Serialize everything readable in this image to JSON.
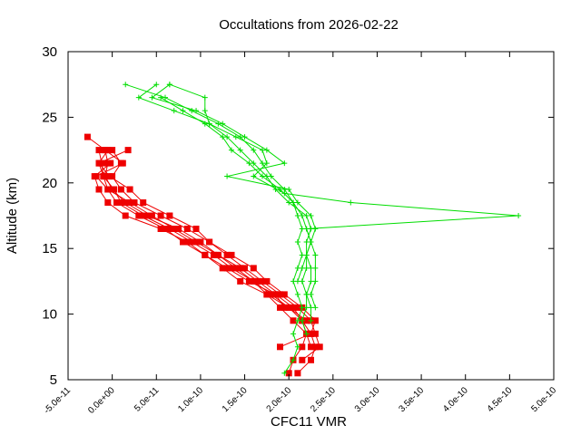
{
  "chart_data": {
    "type": "line",
    "title": "Occultations from 2026-02-22",
    "xlabel": "CFC11 VMR",
    "ylabel": "Altitude (km)",
    "xlim": [
      -5e-11,
      5e-10
    ],
    "ylim": [
      5,
      30
    ],
    "x_ticks": [
      {
        "value": -5e-11,
        "label": "-5.0e-11"
      },
      {
        "value": 0,
        "label": "0.0e+00"
      },
      {
        "value": 5e-11,
        "label": "5.0e-11"
      },
      {
        "value": 1e-10,
        "label": "1.0e-10"
      },
      {
        "value": 1.5e-10,
        "label": "1.5e-10"
      },
      {
        "value": 2e-10,
        "label": "2.0e-10"
      },
      {
        "value": 2.5e-10,
        "label": "2.5e-10"
      },
      {
        "value": 3e-10,
        "label": "3.0e-10"
      },
      {
        "value": 3.5e-10,
        "label": "3.5e-10"
      },
      {
        "value": 4e-10,
        "label": "4.0e-10"
      },
      {
        "value": 4.5e-10,
        "label": "4.5e-10"
      },
      {
        "value": 5e-10,
        "label": "5.0e-10"
      }
    ],
    "y_ticks": [
      {
        "value": 5,
        "label": "5"
      },
      {
        "value": 10,
        "label": "10"
      },
      {
        "value": 15,
        "label": "15"
      },
      {
        "value": 20,
        "label": "20"
      },
      {
        "value": 25,
        "label": "25"
      },
      {
        "value": 30,
        "label": "30"
      }
    ],
    "colors": {
      "red": "#ee0000",
      "green": "#00dd00",
      "axis": "#000000",
      "background": "#ffffff"
    },
    "series": [
      {
        "name": "red-1",
        "color": "#ee0000",
        "marker": "square",
        "points": [
          [
            2.1e-10,
            5.5
          ],
          [
            2.25e-10,
            6.5
          ],
          [
            2.3e-10,
            7.5
          ],
          [
            2.25e-10,
            8.5
          ],
          [
            2.15e-10,
            9.5
          ],
          [
            2e-10,
            10.5
          ],
          [
            1.8e-10,
            11.5
          ],
          [
            1.6e-10,
            12.5
          ],
          [
            1.4e-10,
            13.5
          ],
          [
            1.2e-10,
            14.5
          ],
          [
            1e-10,
            15.5
          ],
          [
            7.5e-11,
            16.5
          ],
          [
            4e-11,
            17.5
          ],
          [
            1.5e-11,
            18.5
          ],
          [
            0,
            19.5
          ],
          [
            -8e-12,
            20.5
          ],
          [
            -5e-12,
            21.5
          ],
          [
            -8e-12,
            22.5
          ],
          [
            -2.8e-11,
            23.5
          ]
        ]
      },
      {
        "name": "red-2",
        "color": "#ee0000",
        "marker": "square",
        "points": [
          [
            2.15e-10,
            6.5
          ],
          [
            2.35e-10,
            7.5
          ],
          [
            2.3e-10,
            8.5
          ],
          [
            2.25e-10,
            9.5
          ],
          [
            2.1e-10,
            10.5
          ],
          [
            1.9e-10,
            11.5
          ],
          [
            1.7e-10,
            12.5
          ],
          [
            1.5e-10,
            13.5
          ],
          [
            1.3e-10,
            14.5
          ],
          [
            1.1e-10,
            15.5
          ],
          [
            8.5e-11,
            16.5
          ],
          [
            5.5e-11,
            17.5
          ],
          [
            2.5e-11,
            18.5
          ],
          [
            1e-11,
            19.5
          ],
          [
            0,
            20.5
          ],
          [
            1e-11,
            21.5
          ],
          [
            0,
            22.5
          ]
        ]
      },
      {
        "name": "red-3",
        "color": "#ee0000",
        "marker": "square",
        "points": [
          [
            2e-10,
            5.5
          ],
          [
            2.05e-10,
            6.5
          ],
          [
            2.15e-10,
            7.5
          ],
          [
            2.2e-10,
            8.5
          ],
          [
            2.05e-10,
            9.5
          ],
          [
            1.9e-10,
            10.5
          ],
          [
            1.75e-10,
            11.5
          ],
          [
            1.45e-10,
            12.5
          ],
          [
            1.25e-10,
            13.5
          ],
          [
            1.05e-10,
            14.5
          ],
          [
            8e-11,
            15.5
          ],
          [
            6e-11,
            16.5
          ],
          [
            3e-11,
            17.5
          ],
          [
            5e-12,
            18.5
          ],
          [
            -5e-12,
            19.5
          ],
          [
            -1e-11,
            20.5
          ],
          [
            -1.2e-11,
            21.5
          ],
          [
            -1.5e-11,
            22.5
          ]
        ]
      },
      {
        "name": "red-4",
        "color": "#ee0000",
        "marker": "square",
        "points": [
          [
            1.9e-10,
            7.5
          ],
          [
            2.25e-10,
            8.5
          ],
          [
            2.3e-10,
            9.5
          ],
          [
            2.15e-10,
            10.5
          ],
          [
            1.95e-10,
            11.5
          ],
          [
            1.75e-10,
            12.5
          ],
          [
            1.6e-10,
            13.5
          ],
          [
            1.35e-10,
            14.5
          ],
          [
            1.1e-10,
            15.5
          ],
          [
            9.5e-11,
            16.5
          ],
          [
            6.5e-11,
            17.5
          ],
          [
            3.5e-11,
            18.5
          ],
          [
            2e-11,
            19.5
          ],
          [
            -3e-12,
            20.5
          ],
          [
            -1.5e-11,
            21.5
          ],
          [
            1.8e-11,
            22.5
          ]
        ]
      },
      {
        "name": "red-5",
        "color": "#ee0000",
        "marker": "square",
        "points": [
          [
            2.25e-10,
            7.5
          ],
          [
            2.2e-10,
            8.5
          ],
          [
            2.15e-10,
            9.5
          ],
          [
            2.05e-10,
            10.5
          ],
          [
            1.85e-10,
            11.5
          ],
          [
            1.65e-10,
            12.5
          ],
          [
            1.45e-10,
            13.5
          ],
          [
            1.2e-10,
            14.5
          ],
          [
            9.5e-11,
            15.5
          ],
          [
            7e-11,
            16.5
          ],
          [
            4.5e-11,
            17.5
          ],
          [
            2e-11,
            18.5
          ],
          [
            -5e-12,
            19.5
          ],
          [
            -1.8e-11,
            20.5
          ],
          [
            1.2e-11,
            21.5
          ],
          [
            -8e-12,
            22.5
          ]
        ]
      },
      {
        "name": "red-6",
        "color": "#ee0000",
        "marker": "square",
        "points": [
          [
            2.2e-10,
            9.5
          ],
          [
            2e-10,
            10.5
          ],
          [
            1.75e-10,
            11.5
          ],
          [
            1.6e-10,
            12.5
          ],
          [
            1.35e-10,
            13.5
          ],
          [
            1.15e-10,
            14.5
          ],
          [
            9e-11,
            15.5
          ],
          [
            6.5e-11,
            16.5
          ],
          [
            3.5e-11,
            17.5
          ],
          [
            1e-11,
            18.5
          ],
          [
            2e-12,
            19.5
          ],
          [
            -1e-11,
            20.5
          ],
          [
            -1.5e-11,
            21.5
          ],
          [
            -5e-12,
            22.5
          ]
        ]
      },
      {
        "name": "red-7",
        "color": "#ee0000",
        "marker": "square",
        "points": [
          [
            1.95e-10,
            10.5
          ],
          [
            1.85e-10,
            11.5
          ],
          [
            1.55e-10,
            12.5
          ],
          [
            1.3e-10,
            13.5
          ],
          [
            1.05e-10,
            14.5
          ],
          [
            8.5e-11,
            15.5
          ],
          [
            5.5e-11,
            16.5
          ],
          [
            1.5e-11,
            17.5
          ],
          [
            -5e-12,
            18.5
          ],
          [
            -1.5e-11,
            19.5
          ],
          [
            -2e-11,
            20.5
          ],
          [
            -2e-12,
            21.5
          ]
        ]
      },
      {
        "name": "green-1",
        "color": "#00dd00",
        "marker": "plus",
        "points": [
          [
            1.95e-10,
            5.5
          ],
          [
            2.05e-10,
            6.5
          ],
          [
            2.1e-10,
            7.5
          ],
          [
            2.05e-10,
            8.5
          ],
          [
            2.1e-10,
            9.5
          ],
          [
            2.15e-10,
            10.5
          ],
          [
            2.1e-10,
            11.5
          ],
          [
            2.05e-10,
            12.5
          ],
          [
            2.1e-10,
            13.5
          ],
          [
            2.15e-10,
            14.5
          ],
          [
            2.1e-10,
            15.5
          ],
          [
            2.15e-10,
            16.5
          ],
          [
            2.1e-10,
            17.5
          ],
          [
            2.05e-10,
            18.5
          ],
          [
            1.95e-10,
            19.5
          ],
          [
            1.8e-10,
            20.5
          ],
          [
            1.7e-10,
            21.5
          ],
          [
            1.6e-10,
            22.5
          ],
          [
            1.45e-10,
            23.5
          ],
          [
            1.2e-10,
            24.5
          ],
          [
            9e-11,
            25.5
          ],
          [
            6e-11,
            26.5
          ],
          [
            1.5e-11,
            27.5
          ]
        ]
      },
      {
        "name": "green-2",
        "color": "#00dd00",
        "marker": "plus",
        "points": [
          [
            2.2e-10,
            8.5
          ],
          [
            2.15e-10,
            9.5
          ],
          [
            2.2e-10,
            10.5
          ],
          [
            2.2e-10,
            11.5
          ],
          [
            2.15e-10,
            12.5
          ],
          [
            2.2e-10,
            13.5
          ],
          [
            2.2e-10,
            14.5
          ],
          [
            2.25e-10,
            15.5
          ],
          [
            2.2e-10,
            16.5
          ],
          [
            4.6e-10,
            17.5
          ],
          [
            2.7e-10,
            18.5
          ],
          [
            1.95e-10,
            19.2
          ],
          [
            1.6e-10,
            20.5
          ],
          [
            1.75e-10,
            21.5
          ],
          [
            1.7e-10,
            22.5
          ],
          [
            1.4e-10,
            23.5
          ],
          [
            1.1e-10,
            24.5
          ],
          [
            7e-11,
            25.5
          ],
          [
            3e-11,
            26.5
          ],
          [
            5e-11,
            27.5
          ]
        ]
      },
      {
        "name": "green-3",
        "color": "#00dd00",
        "marker": "plus",
        "points": [
          [
            2.25e-10,
            9.5
          ],
          [
            2.25e-10,
            10.5
          ],
          [
            2.2e-10,
            11.5
          ],
          [
            2.25e-10,
            12.5
          ],
          [
            2.25e-10,
            13.5
          ],
          [
            2.2e-10,
            14.5
          ],
          [
            2.25e-10,
            15.5
          ],
          [
            2.3e-10,
            16.5
          ],
          [
            2.25e-10,
            17.5
          ],
          [
            2.1e-10,
            18.5
          ],
          [
            2e-10,
            19.5
          ],
          [
            1.3e-10,
            20.5
          ],
          [
            1.95e-10,
            21.5
          ],
          [
            1.75e-10,
            22.5
          ],
          [
            1.5e-10,
            23.5
          ],
          [
            1.25e-10,
            24.5
          ],
          [
            9.5e-11,
            25.5
          ],
          [
            4.5e-11,
            26.5
          ],
          [
            6.5e-11,
            27.5
          ]
        ]
      },
      {
        "name": "green-4",
        "color": "#00dd00",
        "marker": "plus",
        "points": [
          [
            2.3e-10,
            10.5
          ],
          [
            2.25e-10,
            11.5
          ],
          [
            2.3e-10,
            12.5
          ],
          [
            2.3e-10,
            13.5
          ],
          [
            2.3e-10,
            14.5
          ],
          [
            2.25e-10,
            15.5
          ],
          [
            2.2e-10,
            16.5
          ],
          [
            2.15e-10,
            17.5
          ],
          [
            2.05e-10,
            18.5
          ],
          [
            1.9e-10,
            19.5
          ],
          [
            1.7e-10,
            20.5
          ],
          [
            1.55e-10,
            21.5
          ],
          [
            1.35e-10,
            22.5
          ],
          [
            1.25e-10,
            23.5
          ],
          [
            1.05e-10,
            24.5
          ],
          [
            8e-11,
            25.5
          ],
          [
            5.5e-11,
            26.5
          ]
        ]
      },
      {
        "name": "green-5",
        "color": "#00dd00",
        "marker": "plus",
        "points": [
          [
            2.1e-10,
            12.5
          ],
          [
            2.15e-10,
            13.5
          ],
          [
            2.2e-10,
            14.5
          ],
          [
            2.2e-10,
            15.5
          ],
          [
            2.25e-10,
            16.5
          ],
          [
            2.2e-10,
            17.5
          ],
          [
            2e-10,
            18.5
          ],
          [
            1.85e-10,
            19.5
          ],
          [
            1.75e-10,
            20.5
          ],
          [
            1.6e-10,
            21.5
          ],
          [
            1.45e-10,
            22.5
          ],
          [
            1.3e-10,
            23.5
          ],
          [
            1.1e-10,
            24.5
          ],
          [
            1.05e-10,
            25.5
          ],
          [
            1.05e-10,
            26.5
          ],
          [
            6.5e-11,
            27.5
          ]
        ]
      }
    ]
  }
}
